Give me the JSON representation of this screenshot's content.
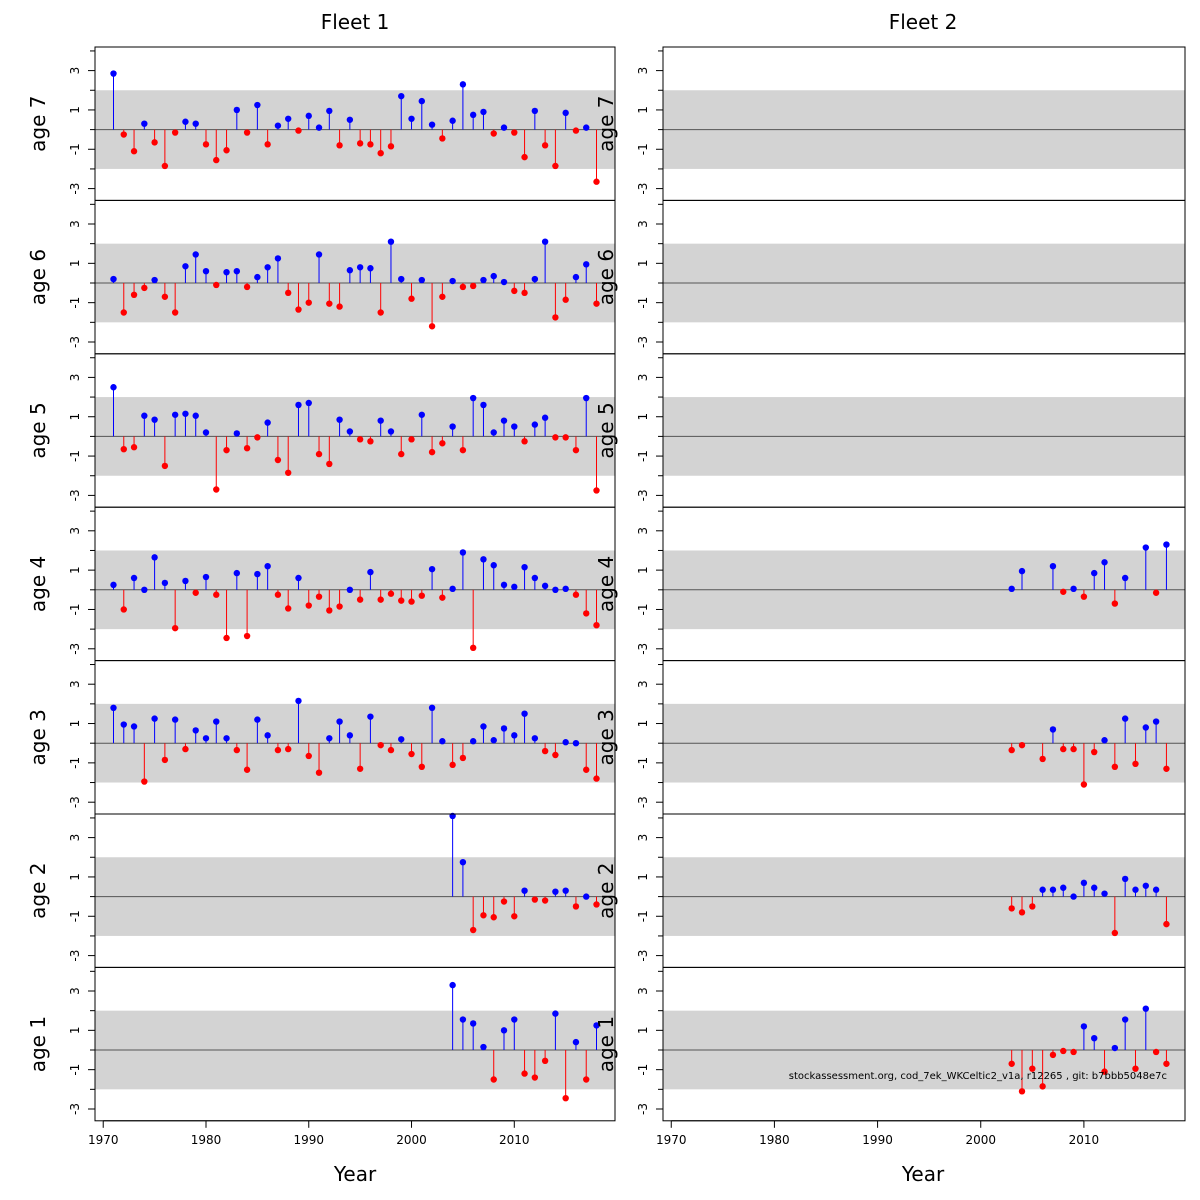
{
  "chart_data": {
    "type": "scatter",
    "subtype": "lollipop-residuals",
    "fleets": [
      "Fleet 1",
      "Fleet 2"
    ],
    "ages": [
      "age 7",
      "age 6",
      "age 5",
      "age 4",
      "age 3",
      "age 2",
      "age 1"
    ],
    "xlabel": "Year",
    "x_ticks": [
      1970,
      1980,
      1990,
      2000,
      2010
    ],
    "y_ticks": [
      3,
      1,
      -1,
      -3
    ],
    "ylim": [
      -3.6,
      4.2
    ],
    "band": [
      -2,
      2
    ],
    "colors": {
      "positive": "#0000ff",
      "negative": "#ff0000",
      "band": "#d3d3d3"
    },
    "watermark": "stockassessment.org, cod_7ek_WKCeltic2_v1a, r12265 , git: b7bbb5048e7c",
    "panels": {
      "Fleet 1": {
        "age 7": {
          "x": [
            1971,
            1972,
            1973,
            1974,
            1975,
            1976,
            1977,
            1978,
            1979,
            1980,
            1981,
            1982,
            1983,
            1984,
            1985,
            1986,
            1987,
            1988,
            1989,
            1990,
            1991,
            1992,
            1993,
            1994,
            1995,
            1996,
            1997,
            1998,
            1999,
            2000,
            2001,
            2002,
            2003,
            2004,
            2005,
            2006,
            2007,
            2008,
            2009,
            2010,
            2011,
            2012,
            2013,
            2014,
            2015,
            2016,
            2017,
            2018
          ],
          "y": [
            2.85,
            -0.25,
            -1.1,
            0.3,
            -0.65,
            -1.85,
            -0.15,
            0.4,
            0.3,
            -0.75,
            -1.55,
            -1.05,
            1.0,
            -0.15,
            1.25,
            -0.75,
            0.2,
            0.55,
            -0.05,
            0.7,
            0.1,
            0.95,
            -0.8,
            0.5,
            -0.7,
            -0.75,
            -1.2,
            -0.85,
            1.7,
            0.55,
            1.45,
            0.25,
            -0.45,
            0.45,
            2.3,
            0.75,
            0.9,
            -0.2,
            0.1,
            -0.15,
            -1.4,
            0.95,
            -0.8,
            -1.85,
            0.85,
            -0.05,
            0.1,
            -2.65
          ]
        },
        "age 6": {
          "x": [
            1971,
            1972,
            1973,
            1974,
            1975,
            1976,
            1977,
            1978,
            1979,
            1980,
            1981,
            1982,
            1983,
            1984,
            1985,
            1986,
            1987,
            1988,
            1989,
            1990,
            1991,
            1992,
            1993,
            1994,
            1995,
            1996,
            1997,
            1998,
            1999,
            2000,
            2001,
            2002,
            2003,
            2004,
            2005,
            2006,
            2007,
            2008,
            2009,
            2010,
            2011,
            2012,
            2013,
            2014,
            2015,
            2016,
            2017,
            2018
          ],
          "y": [
            0.2,
            -1.5,
            -0.6,
            -0.25,
            0.15,
            -0.7,
            -1.5,
            0.85,
            1.45,
            0.6,
            -0.1,
            0.55,
            0.6,
            -0.2,
            0.3,
            0.8,
            1.25,
            -0.5,
            -1.35,
            -1.0,
            1.45,
            -1.05,
            -1.2,
            0.65,
            0.8,
            0.75,
            -1.5,
            2.1,
            0.2,
            -0.8,
            0.15,
            -2.2,
            -0.7,
            0.1,
            -0.2,
            -0.15,
            0.15,
            0.35,
            0.05,
            -0.4,
            -0.5,
            0.2,
            2.1,
            -1.75,
            -0.85,
            0.3,
            0.95,
            -1.05
          ]
        },
        "age 5": {
          "x": [
            1971,
            1972,
            1973,
            1974,
            1975,
            1976,
            1977,
            1978,
            1979,
            1980,
            1981,
            1982,
            1983,
            1984,
            1985,
            1986,
            1987,
            1988,
            1989,
            1990,
            1991,
            1992,
            1993,
            1994,
            1995,
            1996,
            1997,
            1998,
            1999,
            2000,
            2001,
            2002,
            2003,
            2004,
            2005,
            2006,
            2007,
            2008,
            2009,
            2010,
            2011,
            2012,
            2013,
            2014,
            2015,
            2016,
            2017,
            2018
          ],
          "y": [
            2.5,
            -0.65,
            -0.55,
            1.05,
            0.85,
            -1.5,
            1.1,
            1.15,
            1.05,
            0.2,
            -2.7,
            -0.7,
            0.15,
            -0.6,
            -0.05,
            0.7,
            -1.2,
            -1.85,
            1.6,
            1.7,
            -0.9,
            -1.4,
            0.85,
            0.25,
            -0.15,
            -0.25,
            0.8,
            0.25,
            -0.9,
            -0.15,
            1.1,
            -0.8,
            -0.35,
            0.5,
            -0.7,
            1.95,
            1.6,
            0.2,
            0.8,
            0.5,
            -0.25,
            0.6,
            0.95,
            -0.05,
            -0.05,
            -0.7,
            1.95,
            -2.75
          ]
        },
        "age 4": {
          "x": [
            1971,
            1972,
            1973,
            1974,
            1975,
            1976,
            1977,
            1978,
            1979,
            1980,
            1981,
            1982,
            1983,
            1984,
            1985,
            1986,
            1987,
            1988,
            1989,
            1990,
            1991,
            1992,
            1993,
            1994,
            1995,
            1996,
            1997,
            1998,
            1999,
            2000,
            2001,
            2002,
            2003,
            2004,
            2005,
            2006,
            2007,
            2008,
            2009,
            2010,
            2011,
            2012,
            2013,
            2014,
            2015,
            2016,
            2017,
            2018
          ],
          "y": [
            0.25,
            -1.0,
            0.6,
            0.0,
            1.65,
            0.35,
            -1.95,
            0.45,
            -0.15,
            0.65,
            -0.25,
            -2.45,
            0.85,
            -2.35,
            0.8,
            1.2,
            -0.25,
            -0.95,
            0.6,
            -0.8,
            -0.35,
            -1.05,
            -0.85,
            0.0,
            -0.5,
            0.9,
            -0.5,
            -0.2,
            -0.55,
            -0.6,
            -0.3,
            1.05,
            -0.4,
            0.05,
            1.9,
            -2.95,
            1.55,
            1.25,
            0.25,
            0.15,
            1.15,
            0.6,
            0.2,
            0.0,
            0.05,
            -0.25,
            -1.2,
            -1.8
          ]
        },
        "age 3": {
          "x": [
            1971,
            1972,
            1973,
            1974,
            1975,
            1976,
            1977,
            1978,
            1979,
            1980,
            1981,
            1982,
            1983,
            1984,
            1985,
            1986,
            1987,
            1988,
            1989,
            1990,
            1991,
            1992,
            1993,
            1994,
            1995,
            1996,
            1997,
            1998,
            1999,
            2000,
            2001,
            2002,
            2003,
            2004,
            2005,
            2006,
            2007,
            2008,
            2009,
            2010,
            2011,
            2012,
            2013,
            2014,
            2015,
            2016,
            2017,
            2018
          ],
          "y": [
            1.8,
            0.95,
            0.85,
            -1.95,
            1.25,
            -0.85,
            1.2,
            -0.3,
            0.65,
            0.25,
            1.1,
            0.25,
            -0.35,
            -1.35,
            1.2,
            0.4,
            -0.35,
            -0.3,
            2.15,
            -0.65,
            -1.5,
            0.25,
            1.1,
            0.4,
            -1.3,
            1.35,
            -0.1,
            -0.35,
            0.2,
            -0.55,
            -1.2,
            1.8,
            0.1,
            -1.1,
            -0.75,
            0.1,
            0.85,
            0.15,
            0.75,
            0.4,
            1.5,
            0.25,
            -0.4,
            -0.6,
            0.05,
            0.0,
            -1.35,
            -1.8
          ]
        },
        "age 2": {
          "x": [
            2004,
            2005,
            2006,
            2007,
            2008,
            2009,
            2010,
            2011,
            2012,
            2013,
            2014,
            2015,
            2016,
            2017,
            2018
          ],
          "y": [
            4.1,
            1.75,
            -1.7,
            -0.95,
            -1.05,
            -0.25,
            -1.0,
            0.3,
            -0.15,
            -0.2,
            0.25,
            0.3,
            -0.5,
            0.0,
            -0.4
          ]
        },
        "age 1": {
          "x": [
            2004,
            2005,
            2006,
            2007,
            2008,
            2009,
            2010,
            2011,
            2012,
            2013,
            2014,
            2015,
            2016,
            2017,
            2018
          ],
          "y": [
            3.3,
            1.55,
            1.35,
            0.15,
            -1.5,
            1.0,
            1.55,
            -1.2,
            -1.4,
            -0.55,
            1.85,
            -2.45,
            0.4,
            -1.5,
            1.25
          ]
        }
      },
      "Fleet 2": {
        "age 7": {
          "x": [],
          "y": []
        },
        "age 6": {
          "x": [],
          "y": []
        },
        "age 5": {
          "x": [],
          "y": []
        },
        "age 4": {
          "x": [
            2003,
            2004,
            2007,
            2008,
            2009,
            2010,
            2011,
            2012,
            2013,
            2014,
            2016,
            2017,
            2018
          ],
          "y": [
            0.05,
            0.95,
            1.2,
            -0.1,
            0.05,
            -0.35,
            0.85,
            1.4,
            -0.7,
            0.6,
            2.15,
            -0.15,
            2.3
          ]
        },
        "age 3": {
          "x": [
            2003,
            2004,
            2006,
            2007,
            2008,
            2009,
            2010,
            2011,
            2012,
            2013,
            2014,
            2015,
            2016,
            2017,
            2018
          ],
          "y": [
            -0.35,
            -0.1,
            -0.8,
            0.7,
            -0.3,
            -0.3,
            -2.1,
            -0.45,
            0.15,
            -1.2,
            1.25,
            -1.05,
            0.8,
            1.1,
            -1.3
          ]
        },
        "age 2": {
          "x": [
            2003,
            2004,
            2005,
            2006,
            2007,
            2008,
            2009,
            2010,
            2011,
            2012,
            2013,
            2014,
            2015,
            2016,
            2017,
            2018
          ],
          "y": [
            -0.6,
            -0.8,
            -0.5,
            0.35,
            0.35,
            0.45,
            0.0,
            0.7,
            0.45,
            0.15,
            -1.85,
            0.9,
            0.35,
            0.55,
            0.35,
            -1.4
          ]
        },
        "age 1": {
          "x": [
            2003,
            2004,
            2005,
            2006,
            2007,
            2008,
            2009,
            2010,
            2011,
            2012,
            2013,
            2014,
            2015,
            2016,
            2017,
            2018
          ],
          "y": [
            -0.7,
            -2.1,
            -0.95,
            -1.85,
            -0.25,
            -0.05,
            -0.1,
            1.2,
            0.6,
            -1.1,
            0.1,
            1.55,
            -0.95,
            2.1,
            -0.1,
            -0.7
          ]
        }
      }
    }
  }
}
